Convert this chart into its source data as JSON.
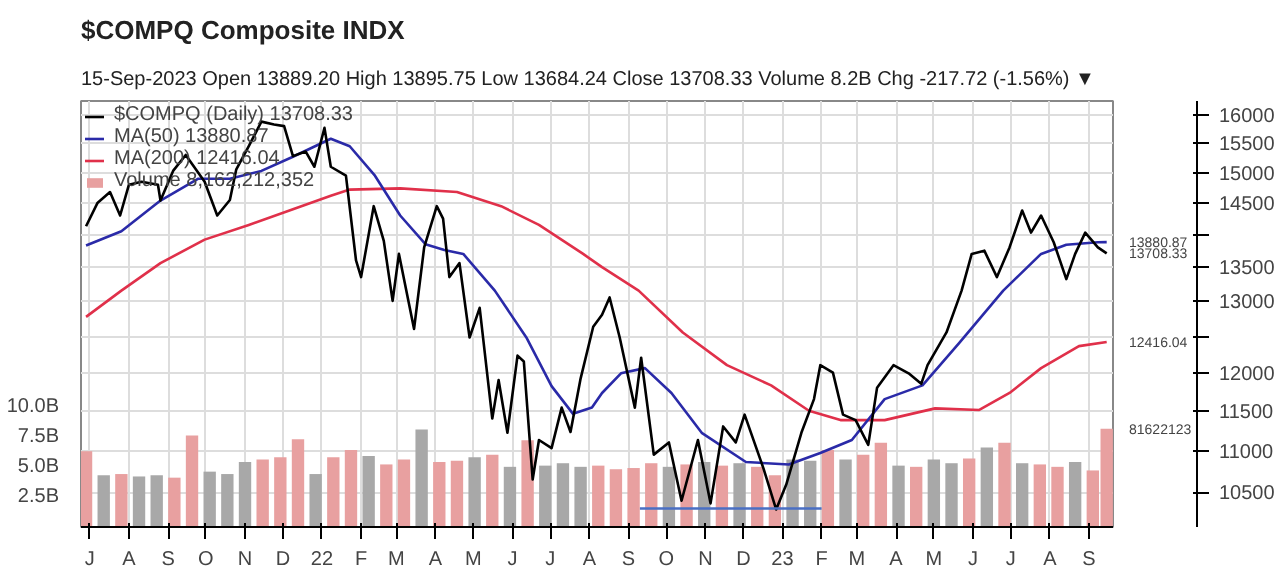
{
  "chart_data": {
    "type": "line",
    "title": "$COMPQ Composite INDX",
    "subtitle": "15-Sep-2023    Open 13889.20   High 13895.75   Low 13684.24   Close 13708.33   Volume 8.2B   Chg -217.72 (-1.56%) ▼",
    "log": "y",
    "grid": true,
    "legend": "top left",
    "xlim": [
      "2021-06-24",
      "2023-09-20"
    ],
    "xticks": [
      {
        "value": "2021-07-01",
        "label": "J"
      },
      {
        "value": "2021-08-01",
        "label": "A"
      },
      {
        "value": "2021-09-01",
        "label": "S"
      },
      {
        "value": "2021-10-01",
        "label": "O"
      },
      {
        "value": "2021-11-01",
        "label": "N"
      },
      {
        "value": "2021-12-01",
        "label": "D"
      },
      {
        "value": "2022-01-01",
        "label": "22"
      },
      {
        "value": "2022-02-01",
        "label": "F"
      },
      {
        "value": "2022-03-01",
        "label": "M"
      },
      {
        "value": "2022-04-01",
        "label": "A"
      },
      {
        "value": "2022-05-01",
        "label": "M"
      },
      {
        "value": "2022-06-01",
        "label": "J"
      },
      {
        "value": "2022-07-01",
        "label": "J"
      },
      {
        "value": "2022-08-01",
        "label": "A"
      },
      {
        "value": "2022-09-01",
        "label": "S"
      },
      {
        "value": "2022-10-01",
        "label": "O"
      },
      {
        "value": "2022-11-01",
        "label": "N"
      },
      {
        "value": "2022-12-01",
        "label": "D"
      },
      {
        "value": "2023-01-01",
        "label": "23"
      },
      {
        "value": "2023-02-01",
        "label": "F"
      },
      {
        "value": "2023-03-01",
        "label": "M"
      },
      {
        "value": "2023-04-01",
        "label": "A"
      },
      {
        "value": "2023-05-01",
        "label": "M"
      },
      {
        "value": "2023-06-01",
        "label": "J"
      },
      {
        "value": "2023-07-01",
        "label": "J"
      },
      {
        "value": "2023-08-01",
        "label": "A"
      },
      {
        "value": "2023-09-01",
        "label": "S"
      }
    ],
    "ylim": [
      10100,
      16250
    ],
    "yticks": [
      10500,
      11000,
      11500,
      12000,
      {
        "value": 12500,
        "label": null
      },
      13000,
      13500,
      {
        "value": 14000,
        "label": null
      },
      14500,
      15000,
      15500,
      16000
    ],
    "y2lim": [
      0,
      35.4
    ],
    "y2ticks": [
      {
        "value": 2.5,
        "label": "2.5B"
      },
      {
        "value": 5.0,
        "label": "5.0B"
      },
      {
        "value": 7.5,
        "label": "7.5B"
      },
      {
        "value": 10.0,
        "label": "10.0B"
      }
    ],
    "series": [
      {
        "name": "Volume 8,162,212,352",
        "type": "bar",
        "axis": "y2",
        "x": [
          "2021-06-28",
          "2021-07-12",
          "2021-07-26",
          "2021-08-09",
          "2021-08-23",
          "2021-09-06",
          "2021-09-20",
          "2021-10-04",
          "2021-10-18",
          "2021-11-01",
          "2021-11-15",
          "2021-11-29",
          "2021-12-13",
          "2021-12-27",
          "2022-01-10",
          "2022-01-24",
          "2022-02-07",
          "2022-02-21",
          "2022-03-07",
          "2022-03-21",
          "2022-04-04",
          "2022-04-18",
          "2022-05-02",
          "2022-05-16",
          "2022-05-30",
          "2022-06-13",
          "2022-06-27",
          "2022-07-11",
          "2022-07-25",
          "2022-08-08",
          "2022-08-22",
          "2022-09-05",
          "2022-09-19",
          "2022-10-03",
          "2022-10-17",
          "2022-10-31",
          "2022-11-14",
          "2022-11-28",
          "2022-12-12",
          "2022-12-26",
          "2023-01-09",
          "2023-01-23",
          "2023-02-06",
          "2023-02-20",
          "2023-03-06",
          "2023-03-20",
          "2023-04-03",
          "2023-04-17",
          "2023-05-01",
          "2023-05-15",
          "2023-05-29",
          "2023-06-12",
          "2023-06-26",
          "2023-07-10",
          "2023-07-24",
          "2023-08-07",
          "2023-08-21",
          "2023-09-04",
          "2023-09-15"
        ],
        "values": [
          6.3,
          4.3,
          4.4,
          4.2,
          4.3,
          4.1,
          7.6,
          4.6,
          4.4,
          5.4,
          5.6,
          5.8,
          7.3,
          4.4,
          5.8,
          6.4,
          5.9,
          5.2,
          5.6,
          8.1,
          5.4,
          5.5,
          5.8,
          6.0,
          5.0,
          7.2,
          5.1,
          5.3,
          5.0,
          5.1,
          4.8,
          4.9,
          5.3,
          5.0,
          5.2,
          5.4,
          5.1,
          5.3,
          5.0,
          4.3,
          5.6,
          5.5,
          6.4,
          5.6,
          6.0,
          7.0,
          5.1,
          5.0,
          5.6,
          5.3,
          5.7,
          6.6,
          7.0,
          5.3,
          5.2,
          5.0,
          5.4,
          4.7,
          8.16
        ],
        "colors": [
          "#e8a0a0",
          "#a8a8a8",
          "#e8a0a0",
          "#a8a8a8",
          "#a8a8a8",
          "#e8a0a0",
          "#e8a0a0",
          "#a8a8a8",
          "#a8a8a8",
          "#a8a8a8",
          "#e8a0a0",
          "#e8a0a0",
          "#e8a0a0",
          "#a8a8a8",
          "#e8a0a0",
          "#e8a0a0",
          "#a8a8a8",
          "#e8a0a0",
          "#e8a0a0",
          "#a8a8a8",
          "#e8a0a0",
          "#e8a0a0",
          "#a8a8a8",
          "#e8a0a0",
          "#a8a8a8",
          "#e8a0a0",
          "#a8a8a8",
          "#a8a8a8",
          "#a8a8a8",
          "#e8a0a0",
          "#e8a0a0",
          "#e8a0a0",
          "#e8a0a0",
          "#a8a8a8",
          "#e8a0a0",
          "#a8a8a8",
          "#e8a0a0",
          "#a8a8a8",
          "#e8a0a0",
          "#e8a0a0",
          "#a8a8a8",
          "#a8a8a8",
          "#e8a0a0",
          "#a8a8a8",
          "#e8a0a0",
          "#e8a0a0",
          "#a8a8a8",
          "#e8a0a0",
          "#a8a8a8",
          "#a8a8a8",
          "#e8a0a0",
          "#a8a8a8",
          "#e8a0a0",
          "#a8a8a8",
          "#e8a0a0",
          "#e8a0a0",
          "#a8a8a8",
          "#e8a0a0",
          "#e8a0a0"
        ]
      },
      {
        "name": "MA(200) 12416.04",
        "color": "#e0304a",
        "x": [
          "2021-06-28",
          "2021-07-26",
          "2021-08-26",
          "2021-09-30",
          "2021-11-04",
          "2021-12-09",
          "2022-01-08",
          "2022-01-23",
          "2022-03-04",
          "2022-04-18",
          "2022-05-23",
          "2022-06-22",
          "2022-07-27",
          "2022-08-11",
          "2022-09-09",
          "2022-10-14",
          "2022-11-18",
          "2022-12-23",
          "2023-01-22",
          "2023-02-16",
          "2023-03-23",
          "2023-05-02",
          "2023-06-06",
          "2023-06-30",
          "2023-07-25",
          "2023-08-24",
          "2023-09-15"
        ],
        "values": [
          12770,
          13150,
          13560,
          13920,
          14150,
          14400,
          14620,
          14720,
          14740,
          14680,
          14450,
          14150,
          13700,
          13500,
          13150,
          12550,
          12100,
          11830,
          11500,
          11380,
          11380,
          11530,
          11510,
          11730,
          12060,
          12360,
          12416.04
        ],
        "value_labels": [
          null,
          null,
          null,
          null,
          null,
          null,
          null,
          null,
          null,
          null,
          null,
          null,
          null,
          null,
          null,
          null,
          null,
          null,
          null,
          null,
          null,
          null,
          null,
          null,
          null,
          null,
          "12416.04"
        ]
      },
      {
        "name": "MA(50) 13880.87",
        "color": "#2a2aa8",
        "x": [
          "2021-06-28",
          "2021-07-26",
          "2021-08-26",
          "2021-09-25",
          "2021-10-20",
          "2021-11-14",
          "2021-12-09",
          "2022-01-08",
          "2022-01-23",
          "2022-02-12",
          "2022-03-04",
          "2022-03-24",
          "2022-04-08",
          "2022-04-23",
          "2022-05-18",
          "2022-06-12",
          "2022-07-02",
          "2022-07-19",
          "2022-08-03",
          "2022-08-11",
          "2022-08-26",
          "2022-09-14",
          "2022-10-05",
          "2022-10-29",
          "2022-12-03",
          "2023-01-06",
          "2023-01-31",
          "2023-02-25",
          "2023-03-23",
          "2023-04-22",
          "2023-05-21",
          "2023-06-25",
          "2023-07-25",
          "2023-08-14",
          "2023-09-08",
          "2023-09-15"
        ],
        "values": [
          13830,
          14050,
          14540,
          14900,
          14900,
          15030,
          15270,
          15580,
          15450,
          14950,
          14300,
          13850,
          13760,
          13700,
          13150,
          12480,
          11820,
          11460,
          11540,
          11730,
          11990,
          12060,
          11730,
          11220,
          10860,
          10830,
          10970,
          11130,
          11650,
          11830,
          12400,
          13150,
          13700,
          13840,
          13880,
          13880.87
        ],
        "value_labels": [
          null,
          null,
          null,
          null,
          null,
          null,
          null,
          null,
          null,
          null,
          null,
          null,
          null,
          null,
          null,
          null,
          null,
          null,
          null,
          null,
          null,
          null,
          null,
          null,
          null,
          null,
          null,
          null,
          null,
          null,
          null,
          null,
          null,
          null,
          null,
          "13880.87"
        ]
      },
      {
        "name": "$COMPQ (Daily) 13708.33",
        "color": "#000000",
        "x": [
          "2021-06-28",
          "2021-07-07",
          "2021-07-17",
          "2021-07-25",
          "2021-08-01",
          "2021-08-11",
          "2021-08-24",
          "2021-08-26",
          "2021-09-05",
          "2021-09-15",
          "2021-09-30",
          "2021-10-10",
          "2021-10-20",
          "2021-10-25",
          "2021-11-04",
          "2021-11-14",
          "2021-11-24",
          "2021-12-02",
          "2021-12-09",
          "2021-12-19",
          "2021-12-26",
          "2022-01-03",
          "2022-01-08",
          "2022-01-20",
          "2022-01-28",
          "2022-02-01",
          "2022-02-11",
          "2022-02-19",
          "2022-02-26",
          "2022-03-03",
          "2022-03-15",
          "2022-03-23",
          "2022-04-02",
          "2022-04-07",
          "2022-04-12",
          "2022-04-20",
          "2022-04-28",
          "2022-05-06",
          "2022-05-16",
          "2022-05-21",
          "2022-05-28",
          "2022-06-05",
          "2022-06-10",
          "2022-06-17",
          "2022-06-22",
          "2022-07-02",
          "2022-07-10",
          "2022-07-17",
          "2022-07-25",
          "2022-08-04",
          "2022-08-11",
          "2022-08-17",
          "2022-08-25",
          "2022-09-06",
          "2022-09-11",
          "2022-09-21",
          "2022-10-03",
          "2022-10-13",
          "2022-10-26",
          "2022-11-05",
          "2022-11-15",
          "2022-11-25",
          "2022-12-02",
          "2022-12-17",
          "2022-12-27",
          "2023-01-04",
          "2023-01-16",
          "2023-01-26",
          "2023-01-31",
          "2023-02-10",
          "2023-02-18",
          "2023-02-28",
          "2023-03-10",
          "2023-03-17",
          "2023-03-30",
          "2023-04-11",
          "2023-04-21",
          "2023-04-26",
          "2023-05-11",
          "2023-05-23",
          "2023-05-31",
          "2023-06-10",
          "2023-06-20",
          "2023-06-30",
          "2023-07-10",
          "2023-07-17",
          "2023-07-25",
          "2023-08-04",
          "2023-08-14",
          "2023-08-21",
          "2023-08-29",
          "2023-09-08",
          "2023-09-15"
        ],
        "values": [
          14130,
          14500,
          14680,
          14300,
          14800,
          14850,
          14800,
          14540,
          15030,
          15300,
          14850,
          14300,
          14550,
          15050,
          15450,
          15880,
          15830,
          15800,
          15280,
          15360,
          15100,
          15770,
          15100,
          14950,
          13600,
          13350,
          14450,
          13900,
          13000,
          13700,
          12600,
          13800,
          14450,
          14250,
          13350,
          13560,
          12480,
          12900,
          11400,
          11900,
          11220,
          12230,
          12150,
          10650,
          11130,
          11030,
          11540,
          11230,
          11920,
          12630,
          12800,
          13050,
          12480,
          11540,
          12200,
          10950,
          11100,
          10400,
          11130,
          10370,
          11300,
          11100,
          11450,
          10780,
          10300,
          10590,
          11220,
          11650,
          12100,
          12000,
          11450,
          11380,
          11070,
          11800,
          12100,
          11990,
          11850,
          12100,
          12550,
          13150,
          13700,
          13750,
          13350,
          13800,
          14380,
          14030,
          14300,
          13880,
          13320,
          13700,
          14030,
          13800,
          13708.33
        ],
        "value_labels": [
          null,
          null,
          null,
          null,
          null,
          null,
          null,
          null,
          null,
          null,
          null,
          null,
          null,
          null,
          null,
          null,
          null,
          null,
          null,
          null,
          null,
          null,
          null,
          null,
          null,
          null,
          null,
          null,
          null,
          null,
          null,
          null,
          null,
          null,
          null,
          null,
          null,
          null,
          null,
          null,
          null,
          null,
          null,
          null,
          null,
          null,
          null,
          null,
          null,
          null,
          null,
          null,
          null,
          null,
          null,
          null,
          null,
          null,
          null,
          null,
          null,
          null,
          null,
          null,
          null,
          null,
          null,
          null,
          null,
          null,
          null,
          null,
          null,
          null,
          null,
          null,
          null,
          null,
          null,
          null,
          null,
          null,
          null,
          null,
          null,
          null,
          null,
          null,
          null,
          null,
          null,
          null,
          "13708.33"
        ]
      },
      {
        "type": "line",
        "color": "#4a6fc4",
        "x": [
          "2022-09-10",
          "2023-02-01"
        ],
        "values": [
          10310,
          10310
        ]
      }
    ],
    "annotations": [
      "81622123"
    ]
  }
}
